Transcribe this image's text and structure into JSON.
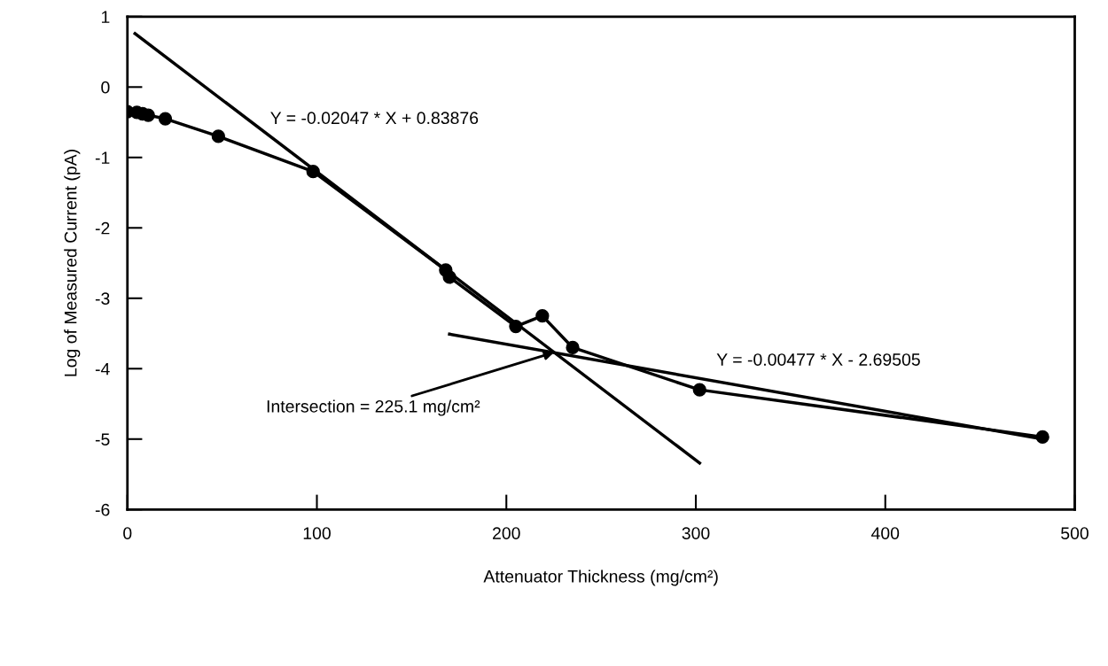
{
  "chart_data": {
    "type": "line",
    "xlabel": "Attenuator Thickness (mg/cm²)",
    "ylabel": "Log of Measured Current (pA)",
    "xlim": [
      0,
      500
    ],
    "xticks": [
      0,
      100,
      200,
      300,
      400,
      500
    ],
    "ylim": [
      -6,
      1
    ],
    "yticks": [
      -6,
      -5,
      -4,
      -3,
      -2,
      -1,
      0,
      1
    ],
    "grid": false,
    "legend": false,
    "series": [
      {
        "color": "#000000",
        "marker": "circle",
        "x": [
          0,
          5,
          8,
          11,
          20,
          48,
          98,
          168,
          170,
          205,
          219,
          235,
          302,
          483
        ],
        "values": [
          -0.35,
          -0.36,
          -0.38,
          -0.4,
          -0.45,
          -0.7,
          -1.2,
          -2.6,
          -2.7,
          -3.4,
          -3.25,
          -3.7,
          -4.3,
          -4.97
        ]
      },
      {
        "name": "Y = -0.02047 * X + 0.83876",
        "color": "#000000",
        "marker": "none",
        "x": [
          4,
          302
        ],
        "values": [
          0.76,
          -5.34
        ]
      },
      {
        "name": "Y = -0.00477 * X - 2.69505",
        "color": "#000000",
        "marker": "none",
        "x": [
          170,
          483
        ],
        "values": [
          -3.51,
          -5.0
        ]
      }
    ],
    "annotations": [
      {
        "text": "Intersection = 225.1 mg/cm²",
        "x": 225.1,
        "y": -3.77
      }
    ]
  }
}
